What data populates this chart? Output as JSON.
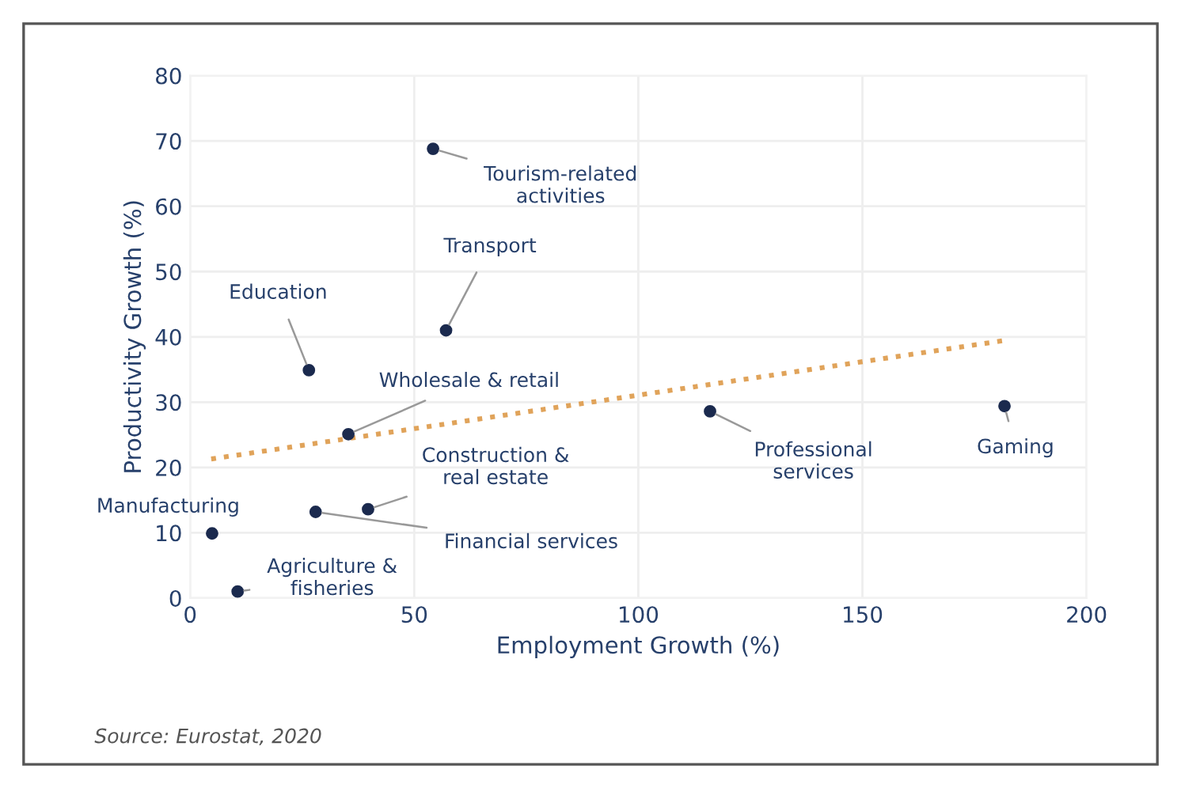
{
  "chart_data": {
    "type": "scatter",
    "xlabel": "Employment Growth (%)",
    "ylabel": "Productivity Growth (%)",
    "x": [
      54.2,
      57.1,
      26.5,
      35.3,
      39.7,
      28.0,
      4.9,
      10.6,
      116,
      181.7
    ],
    "series": [
      {
        "color": "#1b2a4e",
        "values": [
          68.8,
          41.0,
          34.9,
          25.1,
          13.6,
          13.2,
          9.9,
          1.0,
          28.6,
          29.4
        ],
        "marker": "circle"
      },
      {
        "type": "line",
        "color": "#e0a35a",
        "x": [
          4.7,
          182.2
        ],
        "values": [
          21.3,
          39.5
        ],
        "line_style": "dotted"
      }
    ],
    "xlim": [
      0,
      200
    ],
    "ylim": [
      0,
      80
    ],
    "xticks": [
      0,
      50,
      100,
      150,
      200
    ],
    "yticks": [
      0,
      10,
      20,
      30,
      40,
      50,
      60,
      70,
      80
    ],
    "grid": true,
    "annotations": [
      {
        "text": "Tourism-related\nactivities",
        "x": 54.2,
        "y": 68.8
      },
      {
        "text": "Transport",
        "x": 57.1,
        "y": 41.0
      },
      {
        "text": "Education",
        "x": 26.5,
        "y": 34.9
      },
      {
        "text": "Wholesale & retail",
        "x": 35.3,
        "y": 25.1
      },
      {
        "text": "Construction &\nreal estate",
        "x": 39.7,
        "y": 13.6
      },
      {
        "text": "Financial services",
        "x": 28.0,
        "y": 13.2
      },
      {
        "text": "Manufacturing",
        "x": 4.9,
        "y": 9.9
      },
      {
        "text": "Agriculture &\nfisheries",
        "x": 10.6,
        "y": 1.0
      },
      {
        "text": "Professional\nservices",
        "x": 116,
        "y": 28.6
      },
      {
        "text": "Gaming",
        "x": 181.7,
        "y": 29.4
      },
      "Source: Eurostat, 2020"
    ]
  }
}
